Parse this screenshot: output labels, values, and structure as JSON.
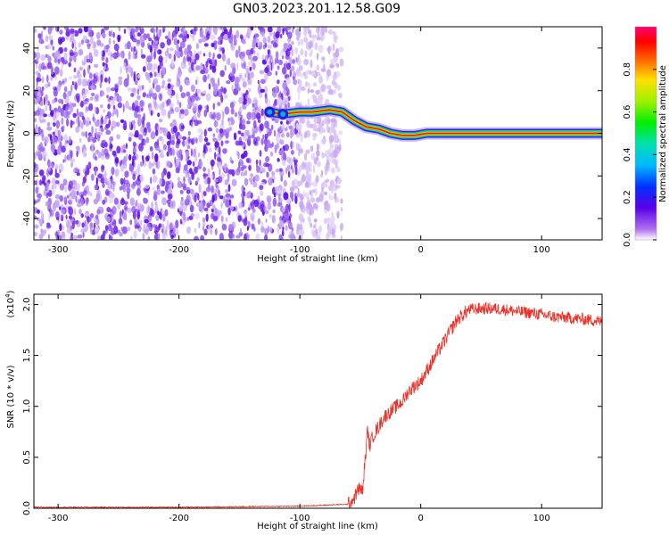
{
  "title": "GN03.2023.201.12.58.G09",
  "chart_data": [
    {
      "type": "heatmap",
      "xlabel": "Height of straight line (km)",
      "ylabel": "Frequency (Hz)",
      "xlim": [
        -320,
        150
      ],
      "ylim": [
        -50,
        50
      ],
      "xticks": [
        -300,
        -200,
        -100,
        0,
        100
      ],
      "xticklabels": [
        "-300",
        "-200",
        "-100",
        "0",
        "100"
      ],
      "yticks": [
        -40,
        -20,
        0,
        20,
        40
      ],
      "yticklabels": [
        "-40",
        "-20",
        "0",
        "20",
        "40"
      ],
      "colorbar": {
        "label": "Normalized spectral amplitude",
        "range": [
          0.0,
          1.0
        ],
        "ticks": [
          0.0,
          0.2,
          0.4,
          0.6,
          0.8
        ],
        "ticklabels": [
          "0.0",
          "0.2",
          "0.4",
          "0.6",
          "0.8"
        ],
        "colormap": "rainbow"
      },
      "noise_region_x": [
        -320,
        -80
      ],
      "ridge": [
        {
          "x": -125,
          "y": 10
        },
        {
          "x": -115,
          "y": 9
        },
        {
          "x": -100,
          "y": 10
        },
        {
          "x": -90,
          "y": 10
        },
        {
          "x": -75,
          "y": 11
        },
        {
          "x": -65,
          "y": 10
        },
        {
          "x": -55,
          "y": 6
        },
        {
          "x": -45,
          "y": 3
        },
        {
          "x": -35,
          "y": 2
        },
        {
          "x": -25,
          "y": 0
        },
        {
          "x": -15,
          "y": -1
        },
        {
          "x": -5,
          "y": -1
        },
        {
          "x": 5,
          "y": 0
        },
        {
          "x": 20,
          "y": 0
        },
        {
          "x": 60,
          "y": 0
        },
        {
          "x": 100,
          "y": 0
        },
        {
          "x": 150,
          "y": 0
        }
      ]
    },
    {
      "type": "line",
      "xlabel": "Height of straight line (km)",
      "ylabel": "SNR (10 * v/v)",
      "yscale_note": "(x10",
      "yscale_exp": "4",
      "yscale_close": ")",
      "xlim": [
        -320,
        150
      ],
      "ylim": [
        0,
        2.1
      ],
      "xticks": [
        -300,
        -200,
        -100,
        0,
        100
      ],
      "xticklabels": [
        "-300",
        "-200",
        "-100",
        "0",
        "100"
      ],
      "yticks": [
        0.0,
        0.5,
        1.0,
        1.5,
        2.0
      ],
      "yticklabels": [
        "0.0",
        "0.5",
        "1.0",
        "1.5",
        "2.0"
      ],
      "color": "#e8322a",
      "x": [
        -320,
        -200,
        -100,
        -60,
        -55,
        -52,
        -50,
        -48,
        -47,
        -45,
        -44,
        -43,
        -42,
        -40,
        -35,
        -30,
        -25,
        -20,
        -15,
        -10,
        -5,
        0,
        5,
        10,
        15,
        20,
        25,
        30,
        35,
        40,
        50,
        60,
        70,
        80,
        90,
        100,
        110,
        120,
        130,
        140,
        150
      ],
      "y": [
        0.01,
        0.01,
        0.02,
        0.04,
        0.1,
        0.18,
        0.2,
        0.15,
        0.35,
        0.6,
        0.8,
        0.65,
        0.62,
        0.7,
        0.8,
        0.9,
        0.95,
        1.0,
        1.05,
        1.15,
        1.2,
        1.25,
        1.35,
        1.45,
        1.55,
        1.65,
        1.75,
        1.85,
        1.9,
        1.95,
        1.96,
        1.96,
        1.95,
        1.93,
        1.92,
        1.9,
        1.88,
        1.87,
        1.86,
        1.85,
        1.83
      ]
    }
  ]
}
